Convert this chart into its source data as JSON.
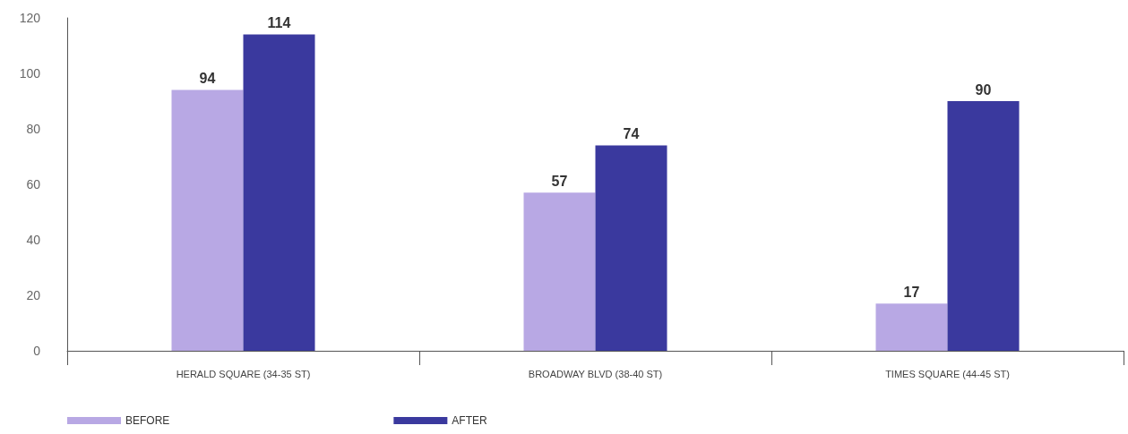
{
  "chart_data": {
    "type": "bar",
    "categories": [
      "HERALD SQUARE (34-35 ST)",
      "BROADWAY BLVD (38-40 ST)",
      "TIMES SQUARE (44-45 ST)"
    ],
    "series": [
      {
        "name": "BEFORE",
        "color": "#b8a8e4",
        "values": [
          94,
          57,
          17
        ]
      },
      {
        "name": "AFTER",
        "color": "#3a399e",
        "values": [
          114,
          74,
          90
        ]
      }
    ],
    "ylim": [
      0,
      120
    ],
    "yticks": [
      0,
      20,
      40,
      60,
      80,
      100,
      120
    ],
    "data_labels": true,
    "grid": false,
    "legend": "bottom left"
  }
}
